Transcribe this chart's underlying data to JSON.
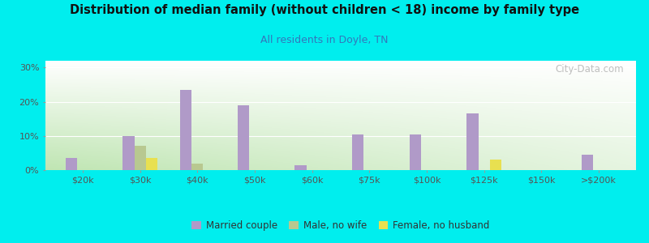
{
  "title": "Distribution of median family (without children < 18) income by family type",
  "subtitle": "All residents in Doyle, TN",
  "background_color": "#00EEEE",
  "plot_bg_top_left": "#c8e8c0",
  "plot_bg_top_right": "#ffffff",
  "plot_bg_bottom_left": "#b0d8a8",
  "plot_bg_bottom_right": "#e8f4e0",
  "categories": [
    "$20k",
    "$30k",
    "$40k",
    "$50k",
    "$60k",
    "$75k",
    "$100k",
    "$125k",
    "$150k",
    ">$200k"
  ],
  "married_couple": [
    3.5,
    10.0,
    23.5,
    19.0,
    1.5,
    10.5,
    10.5,
    16.5,
    0.0,
    4.5
  ],
  "male_no_wife": [
    0.0,
    7.0,
    2.0,
    0.0,
    0.0,
    0.0,
    0.0,
    0.0,
    0.0,
    0.0
  ],
  "female_no_husband": [
    0.0,
    3.5,
    0.0,
    0.0,
    0.0,
    0.0,
    0.0,
    3.0,
    0.0,
    0.0
  ],
  "married_color": "#b09ac8",
  "male_color": "#b8c890",
  "female_color": "#e8e050",
  "ylim": [
    0,
    32
  ],
  "yticks": [
    0,
    10,
    20,
    30
  ],
  "ytick_labels": [
    "0%",
    "10%",
    "20%",
    "30%"
  ],
  "watermark": "City-Data.com",
  "legend_labels": [
    "Married couple",
    "Male, no wife",
    "Female, no husband"
  ],
  "title_color": "#111111",
  "subtitle_color": "#3377bb",
  "tick_color": "#555555"
}
